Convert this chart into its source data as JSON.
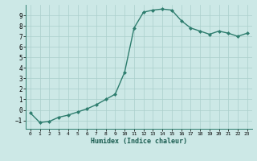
{
  "x": [
    0,
    1,
    2,
    3,
    4,
    5,
    6,
    7,
    8,
    9,
    10,
    11,
    12,
    13,
    14,
    15,
    16,
    17,
    18,
    19,
    20,
    21,
    22,
    23
  ],
  "y": [
    -0.3,
    -1.2,
    -1.1,
    -0.7,
    -0.5,
    -0.2,
    0.1,
    0.5,
    1.0,
    1.5,
    3.6,
    7.8,
    9.3,
    9.5,
    9.6,
    9.5,
    8.5,
    7.8,
    7.5,
    7.2,
    7.5,
    7.3,
    7.0,
    7.3
  ],
  "xlabel": "Humidex (Indice chaleur)",
  "line_color": "#2e7d6e",
  "marker_color": "#2e7d6e",
  "bg_color": "#cce8e6",
  "grid_color": "#aacfcc",
  "ylim": [
    -1.8,
    10.0
  ],
  "xlim": [
    -0.5,
    23.5
  ],
  "yticks": [
    -1,
    0,
    1,
    2,
    3,
    4,
    5,
    6,
    7,
    8,
    9
  ],
  "xticks": [
    0,
    1,
    2,
    3,
    4,
    5,
    6,
    7,
    8,
    9,
    10,
    11,
    12,
    13,
    14,
    15,
    16,
    17,
    18,
    19,
    20,
    21,
    22,
    23
  ]
}
